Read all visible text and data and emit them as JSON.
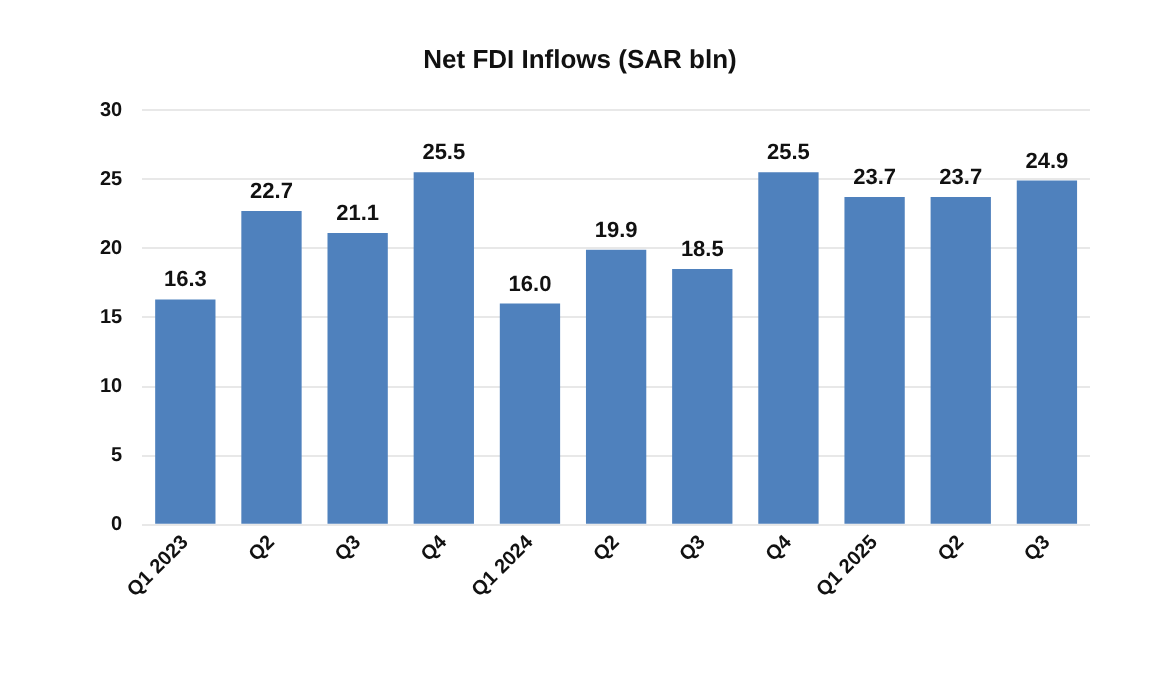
{
  "chart_data": {
    "type": "bar",
    "title": "Net FDI Inflows (SAR bln)",
    "categories": [
      "Q1 2023",
      "Q2",
      "Q3",
      "Q4",
      "Q1 2024",
      "Q2",
      "Q3",
      "Q4",
      "Q1 2025",
      "Q2",
      "Q3"
    ],
    "values": [
      16.3,
      22.7,
      21.1,
      25.5,
      16.0,
      19.9,
      18.5,
      25.5,
      23.7,
      23.7,
      24.9
    ],
    "value_labels": [
      "16.3",
      "22.7",
      "21.1",
      "25.5",
      "16.0",
      "19.9",
      "18.5",
      "25.5",
      "23.7",
      "23.7",
      "24.9"
    ],
    "color": "#4f81bd",
    "ylim": [
      0,
      30
    ],
    "yticks": [
      0,
      5,
      10,
      15,
      20,
      25,
      30
    ],
    "grid": "y"
  }
}
